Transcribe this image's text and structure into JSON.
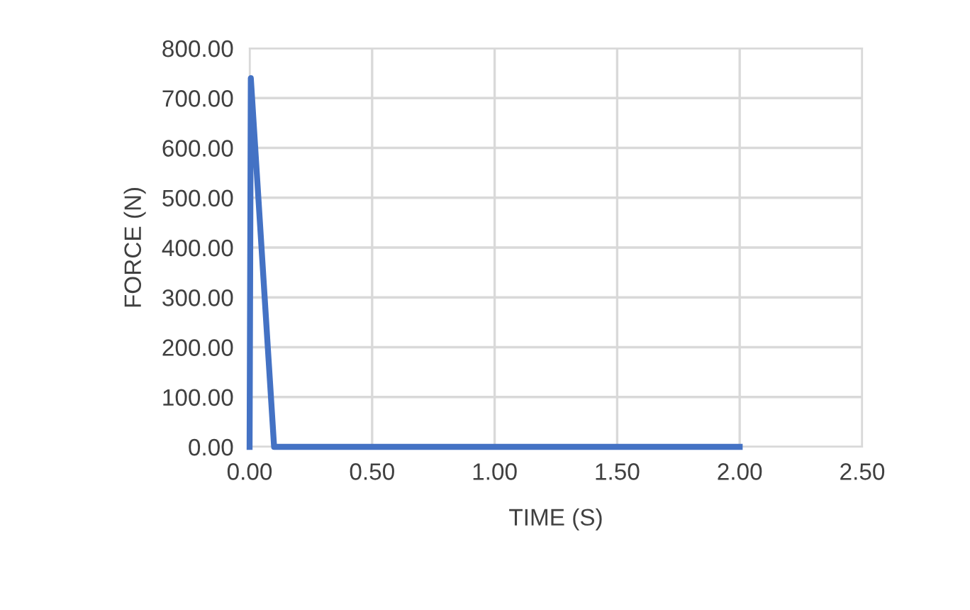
{
  "chart_data": {
    "type": "line",
    "xlabel": "TIME (S)",
    "ylabel": "FORCE (N)",
    "series": [
      {
        "color": "#4472c4",
        "x": [
          0,
          0.005,
          0.1,
          2.0
        ],
        "values": [
          0,
          740,
          0,
          0
        ]
      }
    ],
    "xlim": [
      0,
      2.5
    ],
    "xticks": [
      {
        "value": 0,
        "label": "0.00"
      },
      {
        "value": 0.5,
        "label": "0.50"
      },
      {
        "value": 1.0,
        "label": "1.00"
      },
      {
        "value": 1.5,
        "label": "1.50"
      },
      {
        "value": 2.0,
        "label": "2.00"
      },
      {
        "value": 2.5,
        "label": "2.50"
      }
    ],
    "ylim": [
      0,
      800
    ],
    "yticks": [
      {
        "value": 0,
        "label": "0.00"
      },
      {
        "value": 100,
        "label": "100.00"
      },
      {
        "value": 200,
        "label": "200.00"
      },
      {
        "value": 300,
        "label": "300.00"
      },
      {
        "value": 400,
        "label": "400.00"
      },
      {
        "value": 500,
        "label": "500.00"
      },
      {
        "value": 600,
        "label": "600.00"
      },
      {
        "value": 700,
        "label": "700.00"
      },
      {
        "value": 800,
        "label": "800.00"
      }
    ],
    "grid": true,
    "marker": "none",
    "line_style": "solid",
    "legend": false
  }
}
